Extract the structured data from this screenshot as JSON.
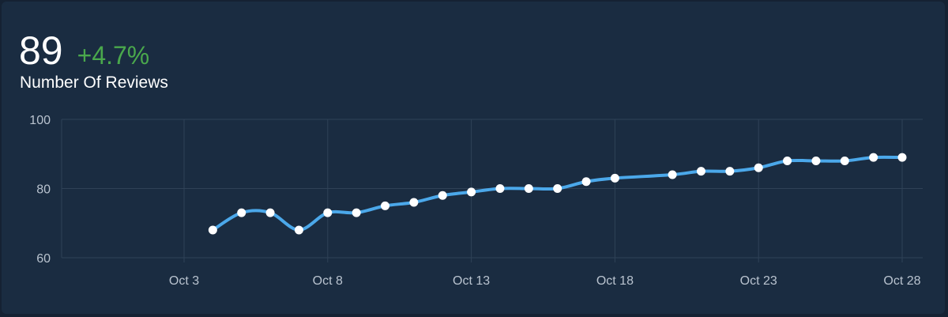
{
  "metric": {
    "value": "89",
    "change": "+4.7%",
    "label": "Number Of Reviews"
  },
  "colors": {
    "background": "#1a2c41",
    "line": "#4ba8ea",
    "point": "#ffffff",
    "change_positive": "#4aa84c",
    "grid": "#2f4257"
  },
  "chart_data": {
    "type": "line",
    "x_dates": [
      "Oct 4",
      "Oct 5",
      "Oct 6",
      "Oct 7",
      "Oct 8",
      "Oct 9",
      "Oct 10",
      "Oct 11",
      "Oct 12",
      "Oct 13",
      "Oct 14",
      "Oct 15",
      "Oct 16",
      "Oct 17",
      "Oct 18",
      "Oct 20",
      "Oct 21",
      "Oct 22",
      "Oct 23",
      "Oct 24",
      "Oct 25",
      "Oct 26",
      "Oct 27",
      "Oct 28"
    ],
    "series": [
      {
        "values": [
          68,
          73,
          73,
          68,
          73,
          73,
          75,
          76,
          78,
          79,
          80,
          80,
          80,
          82,
          83,
          84,
          85,
          85,
          86,
          88,
          88,
          88,
          89,
          89
        ]
      }
    ],
    "x_ticks": [
      "Oct 3",
      "Oct 8",
      "Oct 13",
      "Oct 18",
      "Oct 23",
      "Oct 28"
    ],
    "y_ticks": [
      "60",
      "80",
      "100"
    ],
    "ylim": [
      60,
      100
    ],
    "xlim": [
      "Oct 3",
      "Oct 28"
    ],
    "grid": true,
    "legend": false
  }
}
